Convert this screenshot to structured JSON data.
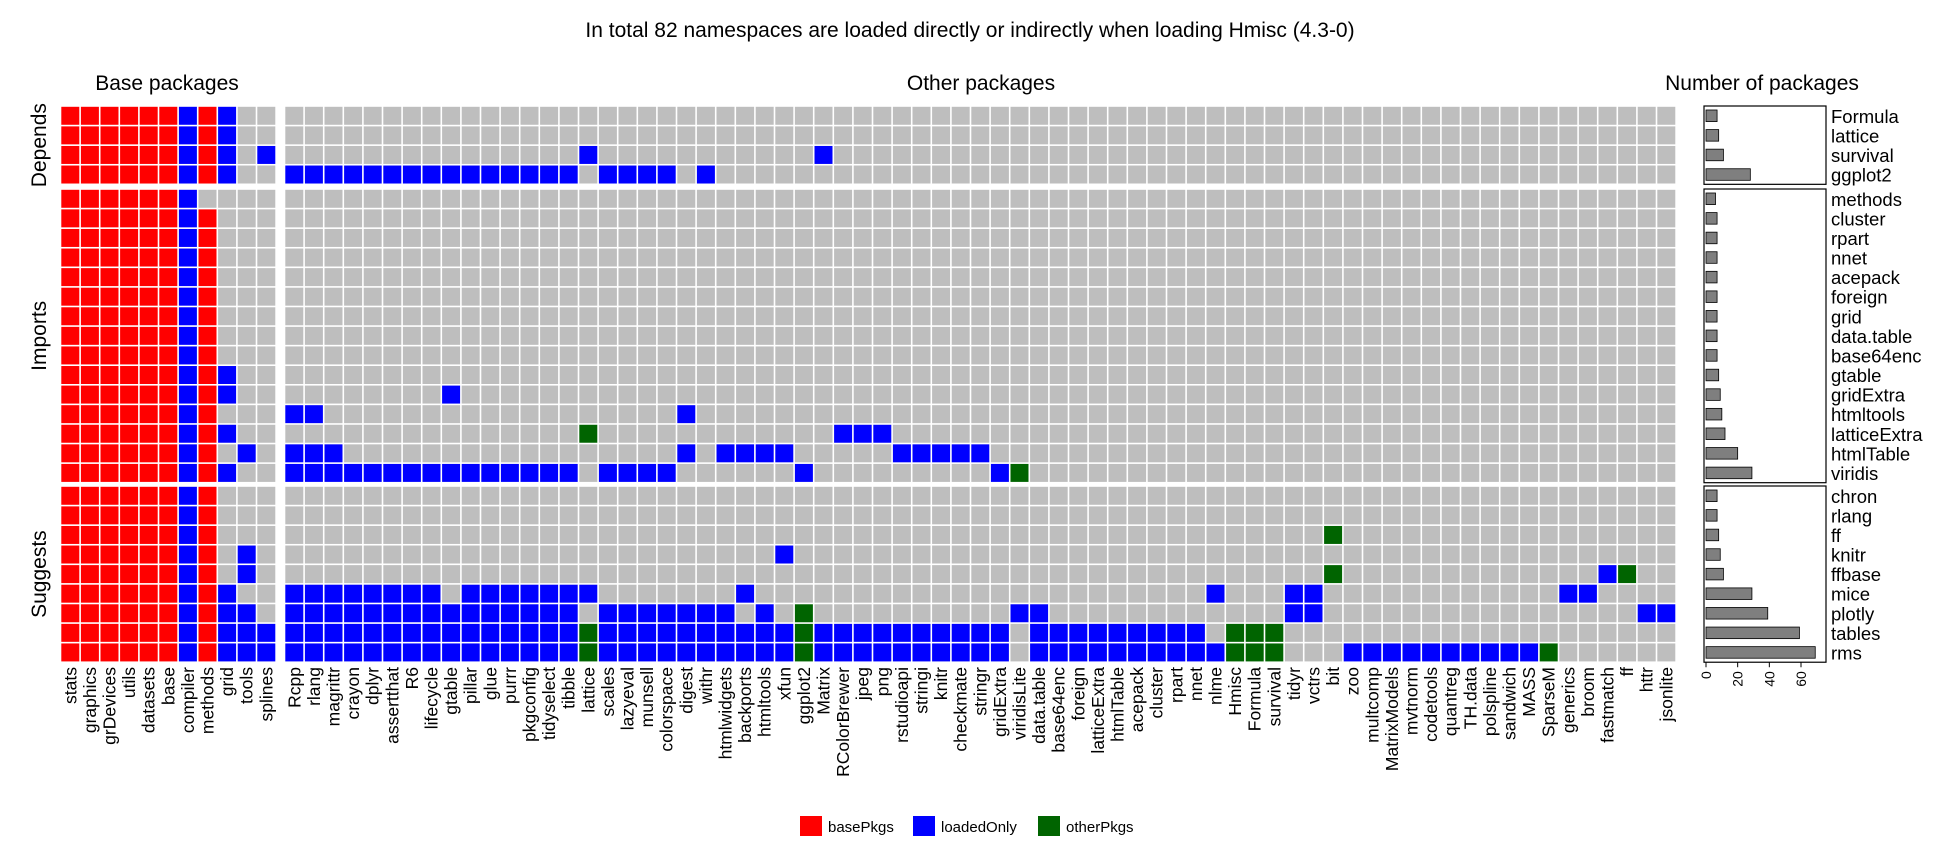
{
  "chart_data": {
    "type": "heatmap",
    "title": "In total 82 namespaces are loaded directly or indirectly when loading Hmisc (4.3-0)",
    "panels": {
      "base": "Base packages",
      "other": "Other packages",
      "counts": "Number of packages"
    },
    "groups": [
      "Depends",
      "Imports",
      "Suggests"
    ],
    "base_columns": [
      "stats",
      "graphics",
      "grDevices",
      "utils",
      "datasets",
      "base",
      "compiler",
      "methods",
      "grid",
      "tools",
      "splines"
    ],
    "other_columns": [
      "Rcpp",
      "rlang",
      "magrittr",
      "crayon",
      "dplyr",
      "assertthat",
      "R6",
      "lifecycle",
      "gtable",
      "pillar",
      "glue",
      "purrr",
      "pkgconfig",
      "tidyselect",
      "tibble",
      "lattice",
      "scales",
      "lazyeval",
      "munsell",
      "colorspace",
      "digest",
      "withr",
      "htmlwidgets",
      "backports",
      "htmltools",
      "xfun",
      "ggplot2",
      "Matrix",
      "RColorBrewer",
      "jpeg",
      "png",
      "rstudioapi",
      "stringi",
      "knitr",
      "checkmate",
      "stringr",
      "gridExtra",
      "viridisLite",
      "data.table",
      "base64enc",
      "foreign",
      "latticeExtra",
      "htmlTable",
      "acepack",
      "cluster",
      "rpart",
      "nnet",
      "nlme",
      "Hmisc",
      "Formula",
      "survival",
      "tidyr",
      "vctrs",
      "bit",
      "zoo",
      "multcomp",
      "MatrixModels",
      "mvtnorm",
      "codetools",
      "quantreg",
      "TH.data",
      "polspline",
      "sandwich",
      "MASS",
      "SparseM",
      "generics",
      "broom",
      "fastmatch",
      "ff",
      "httr",
      "jsonlite"
    ],
    "rows": [
      {
        "name": "Formula",
        "group": "Depends",
        "count": 7,
        "base": "bbbbbbLbL",
        "other": [],
        "other_pkgs": []
      },
      {
        "name": "lattice",
        "group": "Depends",
        "count": 8,
        "base": "bbbbbbLbL",
        "other": [],
        "other_pkgs": []
      },
      {
        "name": "survival",
        "group": "Depends",
        "count": 11,
        "base": "bbbbbbLbL.L",
        "other": [
          "lattice",
          "Matrix"
        ],
        "other_pkgs": []
      },
      {
        "name": "ggplot2",
        "group": "Depends",
        "count": 28,
        "base": "bbbbbbLbL",
        "other": [
          "Rcpp",
          "rlang",
          "magrittr",
          "crayon",
          "dplyr",
          "assertthat",
          "R6",
          "lifecycle",
          "gtable",
          "pillar",
          "glue",
          "purrr",
          "pkgconfig",
          "tidyselect",
          "tibble",
          "scales",
          "lazyeval",
          "munsell",
          "colorspace",
          "withr"
        ],
        "other_pkgs": []
      },
      {
        "name": "methods",
        "group": "Imports",
        "count": 6,
        "base": "bbbbbbL",
        "other": [],
        "other_pkgs": []
      },
      {
        "name": "cluster",
        "group": "Imports",
        "count": 7,
        "base": "bbbbbbLb",
        "other": [],
        "other_pkgs": []
      },
      {
        "name": "rpart",
        "group": "Imports",
        "count": 7,
        "base": "bbbbbbLb",
        "other": [],
        "other_pkgs": []
      },
      {
        "name": "nnet",
        "group": "Imports",
        "count": 7,
        "base": "bbbbbbLb",
        "other": [],
        "other_pkgs": []
      },
      {
        "name": "acepack",
        "group": "Imports",
        "count": 7,
        "base": "bbbbbbLb",
        "other": [],
        "other_pkgs": []
      },
      {
        "name": "foreign",
        "group": "Imports",
        "count": 7,
        "base": "bbbbbbLb",
        "other": [],
        "other_pkgs": []
      },
      {
        "name": "grid",
        "group": "Imports",
        "count": 7,
        "base": "bbbbbbLb",
        "other": [],
        "other_pkgs": []
      },
      {
        "name": "data.table",
        "group": "Imports",
        "count": 7,
        "base": "bbbbbbLb",
        "other": [],
        "other_pkgs": []
      },
      {
        "name": "base64enc",
        "group": "Imports",
        "count": 7,
        "base": "bbbbbbLb",
        "other": [],
        "other_pkgs": []
      },
      {
        "name": "gtable",
        "group": "Imports",
        "count": 8,
        "base": "bbbbbbLbL",
        "other": [],
        "other_pkgs": []
      },
      {
        "name": "gridExtra",
        "group": "Imports",
        "count": 9,
        "base": "bbbbbbLbL",
        "other": [
          "gtable"
        ],
        "other_pkgs": []
      },
      {
        "name": "htmltools",
        "group": "Imports",
        "count": 10,
        "base": "bbbbbbLb",
        "other": [
          "Rcpp",
          "rlang",
          "digest"
        ],
        "other_pkgs": []
      },
      {
        "name": "latticeExtra",
        "group": "Imports",
        "count": 12,
        "base": "bbbbbbLbL",
        "other": [
          "RColorBrewer",
          "jpeg",
          "png"
        ],
        "other_pkgs": [
          "lattice"
        ]
      },
      {
        "name": "htmlTable",
        "group": "Imports",
        "count": 20,
        "base": "bbbbbbLb.L",
        "other": [
          "Rcpp",
          "rlang",
          "magrittr",
          "digest",
          "htmlwidgets",
          "backports",
          "htmltools",
          "xfun",
          "rstudioapi",
          "stringi",
          "knitr",
          "checkmate",
          "stringr"
        ],
        "other_pkgs": []
      },
      {
        "name": "viridis",
        "group": "Imports",
        "count": 29,
        "base": "bbbbbbLbL",
        "other": [
          "Rcpp",
          "rlang",
          "magrittr",
          "crayon",
          "dplyr",
          "assertthat",
          "R6",
          "lifecycle",
          "gtable",
          "pillar",
          "glue",
          "purrr",
          "pkgconfig",
          "tidyselect",
          "tibble",
          "scales",
          "lazyeval",
          "munsell",
          "colorspace",
          "ggplot2",
          "gridExtra"
        ],
        "other_pkgs": [
          "viridisLite"
        ]
      },
      {
        "name": "chron",
        "group": "Suggests",
        "count": 7,
        "base": "bbbbbbLb",
        "other": [],
        "other_pkgs": []
      },
      {
        "name": "rlang",
        "group": "Suggests",
        "count": 7,
        "base": "bbbbbbLb",
        "other": [],
        "other_pkgs": []
      },
      {
        "name": "ff",
        "group": "Suggests",
        "count": 8,
        "base": "bbbbbbLb",
        "other": [],
        "other_pkgs": [
          "bit"
        ]
      },
      {
        "name": "knitr",
        "group": "Suggests",
        "count": 9,
        "base": "bbbbbbLb.L",
        "other": [
          "xfun"
        ],
        "other_pkgs": []
      },
      {
        "name": "ffbase",
        "group": "Suggests",
        "count": 11,
        "base": "bbbbbbLb.L",
        "other": [
          "fastmatch"
        ],
        "other_pkgs": [
          "bit",
          "ff"
        ]
      },
      {
        "name": "mice",
        "group": "Suggests",
        "count": 29,
        "base": "bbbbbbLbL",
        "other": [
          "Rcpp",
          "rlang",
          "magrittr",
          "crayon",
          "dplyr",
          "assertthat",
          "R6",
          "lifecycle",
          "pillar",
          "glue",
          "purrr",
          "pkgconfig",
          "tidyselect",
          "tibble",
          "lattice",
          "backports",
          "nlme",
          "tidyr",
          "vctrs",
          "generics",
          "broom"
        ],
        "other_pkgs": []
      },
      {
        "name": "plotly",
        "group": "Suggests",
        "count": 39,
        "base": "bbbbbbLbLL",
        "other": [
          "Rcpp",
          "rlang",
          "magrittr",
          "crayon",
          "dplyr",
          "assertthat",
          "R6",
          "lifecycle",
          "gtable",
          "pillar",
          "glue",
          "purrr",
          "pkgconfig",
          "tidyselect",
          "tibble",
          "scales",
          "lazyeval",
          "munsell",
          "colorspace",
          "digest",
          "withr",
          "htmlwidgets",
          "htmltools",
          "viridisLite",
          "data.table",
          "tidyr",
          "vctrs",
          "httr",
          "jsonlite"
        ],
        "other_pkgs": [
          "ggplot2"
        ]
      },
      {
        "name": "tables",
        "group": "Suggests",
        "count": 59,
        "base": "bbbbbbLbLLL",
        "other": [
          "Rcpp",
          "rlang",
          "magrittr",
          "crayon",
          "dplyr",
          "assertthat",
          "R6",
          "lifecycle",
          "gtable",
          "pillar",
          "glue",
          "purrr",
          "pkgconfig",
          "tidyselect",
          "tibble",
          "scales",
          "lazyeval",
          "munsell",
          "colorspace",
          "digest",
          "withr",
          "htmlwidgets",
          "backports",
          "htmltools",
          "xfun",
          "Matrix",
          "RColorBrewer",
          "jpeg",
          "png",
          "rstudioapi",
          "stringi",
          "knitr",
          "checkmate",
          "stringr",
          "gridExtra",
          "data.table",
          "base64enc",
          "foreign",
          "latticeExtra",
          "htmlTable",
          "acepack",
          "cluster",
          "rpart",
          "nnet"
        ],
        "other_pkgs": [
          "lattice",
          "ggplot2",
          "Hmisc",
          "Formula",
          "survival"
        ]
      },
      {
        "name": "rms",
        "group": "Suggests",
        "count": 69,
        "base": "bbbbbbLbLLL",
        "other": [
          "Rcpp",
          "rlang",
          "magrittr",
          "crayon",
          "dplyr",
          "assertthat",
          "R6",
          "lifecycle",
          "gtable",
          "pillar",
          "glue",
          "purrr",
          "pkgconfig",
          "tidyselect",
          "tibble",
          "scales",
          "lazyeval",
          "munsell",
          "colorspace",
          "digest",
          "withr",
          "htmlwidgets",
          "backports",
          "htmltools",
          "xfun",
          "Matrix",
          "RColorBrewer",
          "jpeg",
          "png",
          "rstudioapi",
          "stringi",
          "knitr",
          "checkmate",
          "stringr",
          "gridExtra",
          "data.table",
          "base64enc",
          "foreign",
          "latticeExtra",
          "htmlTable",
          "acepack",
          "cluster",
          "rpart",
          "nnet",
          "nlme",
          "zoo",
          "multcomp",
          "MatrixModels",
          "mvtnorm",
          "codetools",
          "quantreg",
          "TH.data",
          "polspline",
          "sandwich",
          "MASS"
        ],
        "other_pkgs": [
          "lattice",
          "ggplot2",
          "Hmisc",
          "Formula",
          "survival",
          "SparseM"
        ]
      }
    ],
    "count_axis": {
      "ticks": [
        0,
        20,
        40,
        60
      ],
      "lim": [
        0,
        72
      ]
    },
    "legend": [
      {
        "label": "basePkgs",
        "color": "#ff0000"
      },
      {
        "label": "loadedOnly",
        "color": "#0000ff"
      },
      {
        "label": "otherPkgs",
        "color": "#006400"
      }
    ],
    "legend_position": "bottom",
    "colors": {
      "cell_bg": "#bebebe",
      "bar": "#7f7f7f"
    }
  }
}
